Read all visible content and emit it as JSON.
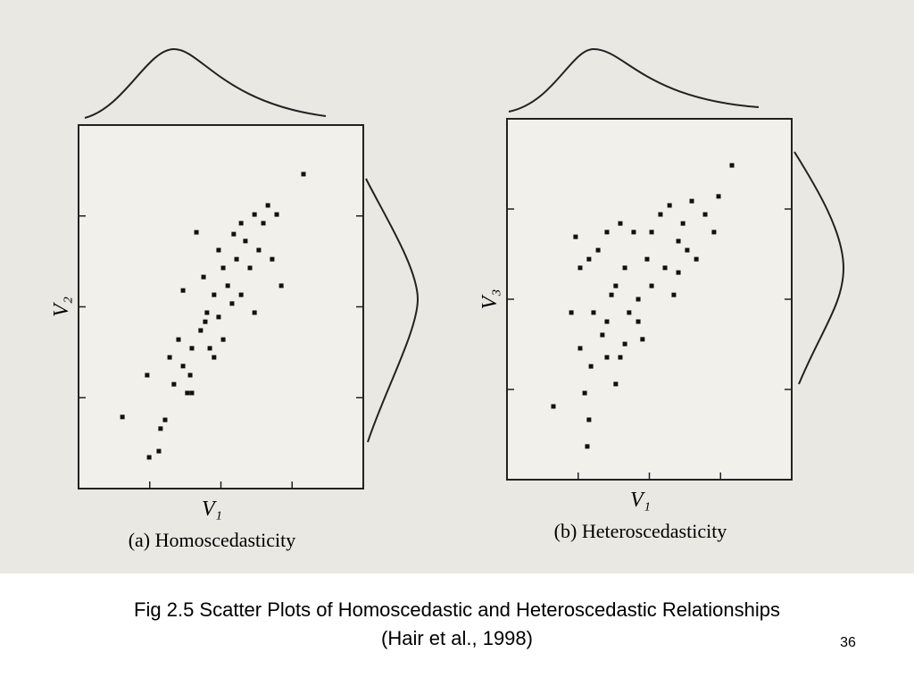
{
  "caption": {
    "line1": "Fig 2.5  Scatter Plots of Homoscedastic and Heteroscedastic Relationships",
    "line2": "(Hair et al., 1998)"
  },
  "page_number": "36",
  "chart_data": [
    {
      "type": "scatter",
      "title": "(a) Homoscedasticity",
      "x_label": "V₁",
      "y_label": "V₂",
      "xlim": [
        0,
        100
      ],
      "ylim": [
        0,
        100
      ],
      "xticks": [
        25,
        50,
        75
      ],
      "yticks": [
        25,
        50,
        75
      ],
      "color": "#111111",
      "x": [
        15.4,
        24.1,
        28.8,
        24.8,
        28.2,
        30.4,
        33.5,
        36.7,
        38.2,
        39.2,
        35.1,
        39.8,
        42.9,
        45.1,
        47.6,
        46.1,
        49.2,
        43.9,
        50.8,
        52.4,
        55.5,
        57.1,
        60.2,
        58.6,
        63.3,
        64.9,
        66.5,
        69.6,
        68.0,
        71.2,
        61.8,
        53.9,
        41.4,
        36.7,
        79.0,
        49.2,
        44.5,
        50.8,
        47.6,
        57.1,
        61.8,
        54.5,
        39.8,
        32.0
      ],
      "y": [
        19.7,
        31.2,
        16.5,
        8.6,
        10.3,
        18.9,
        28.7,
        33.7,
        26.3,
        31.2,
        41.0,
        38.6,
        43.5,
        48.4,
        53.3,
        38.6,
        47.2,
        58.2,
        60.7,
        55.8,
        63.1,
        53.3,
        60.7,
        68.1,
        65.6,
        73.0,
        77.9,
        75.4,
        63.1,
        55.8,
        48.4,
        50.9,
        70.5,
        54.5,
        86.5,
        65.6,
        45.9,
        41.0,
        36.1,
        73.0,
        75.4,
        70.0,
        26.3,
        36.1
      ]
    },
    {
      "type": "scatter",
      "title": "(b) Heteroscedasticity",
      "x_label": "V₁",
      "y_label": "V₃",
      "xlim": [
        0,
        100
      ],
      "ylim": [
        0,
        100
      ],
      "xticks": [
        25,
        50,
        75
      ],
      "yticks": [
        25,
        50,
        75
      ],
      "color": "#111111",
      "x": [
        16.3,
        28.2,
        28.8,
        27.3,
        25.7,
        29.5,
        30.4,
        33.5,
        35.1,
        38.2,
        39.8,
        41.4,
        36.7,
        25.7,
        28.8,
        35.1,
        41.4,
        42.9,
        46.1,
        47.6,
        49.2,
        50.8,
        53.9,
        55.5,
        58.6,
        60.2,
        61.8,
        64.9,
        66.5,
        69.6,
        72.7,
        74.3,
        79.0,
        24.1,
        32.0,
        44.5,
        50.8,
        57.1,
        39.8,
        60.2,
        63.3,
        46.1,
        35.1,
        22.6,
        38.2
      ],
      "y": [
        20.3,
        9.2,
        16.6,
        24.0,
        36.4,
        31.4,
        46.3,
        40.1,
        43.8,
        26.5,
        33.9,
        37.6,
        51.2,
        58.7,
        61.1,
        68.6,
        58.7,
        46.3,
        50.0,
        38.9,
        61.1,
        68.6,
        73.5,
        58.7,
        51.2,
        66.1,
        71.0,
        77.2,
        61.1,
        73.5,
        68.6,
        78.5,
        87.1,
        67.3,
        63.6,
        68.6,
        53.7,
        76.0,
        71.0,
        57.4,
        63.6,
        43.8,
        33.9,
        46.3,
        53.7
      ]
    }
  ]
}
